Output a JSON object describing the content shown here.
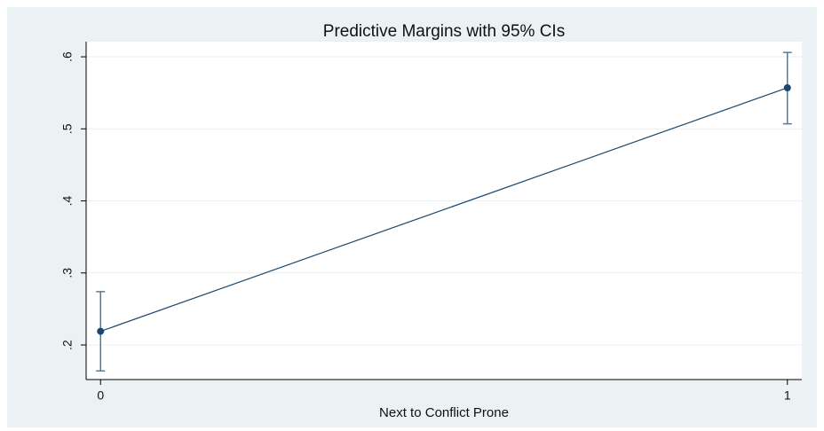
{
  "chart_data": {
    "type": "line",
    "title": "Predictive Margins with 95% CIs",
    "xlabel": "Next to Conflict Prone",
    "x": [
      0,
      1
    ],
    "series": [
      {
        "color": "#1a476f",
        "values": [
          0.219,
          0.557
        ],
        "ci_low": [
          0.164,
          0.507
        ],
        "ci_high": [
          0.274,
          0.606
        ]
      }
    ],
    "xlim": [
      -0.021,
      1.021
    ],
    "xticks": [
      0,
      1
    ],
    "ylim": [
      0.152,
      0.621
    ],
    "yticks": [
      {
        "value": 0.2,
        "label": ".2"
      },
      {
        "value": 0.3,
        "label": ".3"
      },
      {
        "value": 0.4,
        "label": ".4"
      },
      {
        "value": 0.5,
        "label": ".5"
      },
      {
        "value": 0.6,
        "label": ".6"
      }
    ],
    "grid": true
  }
}
